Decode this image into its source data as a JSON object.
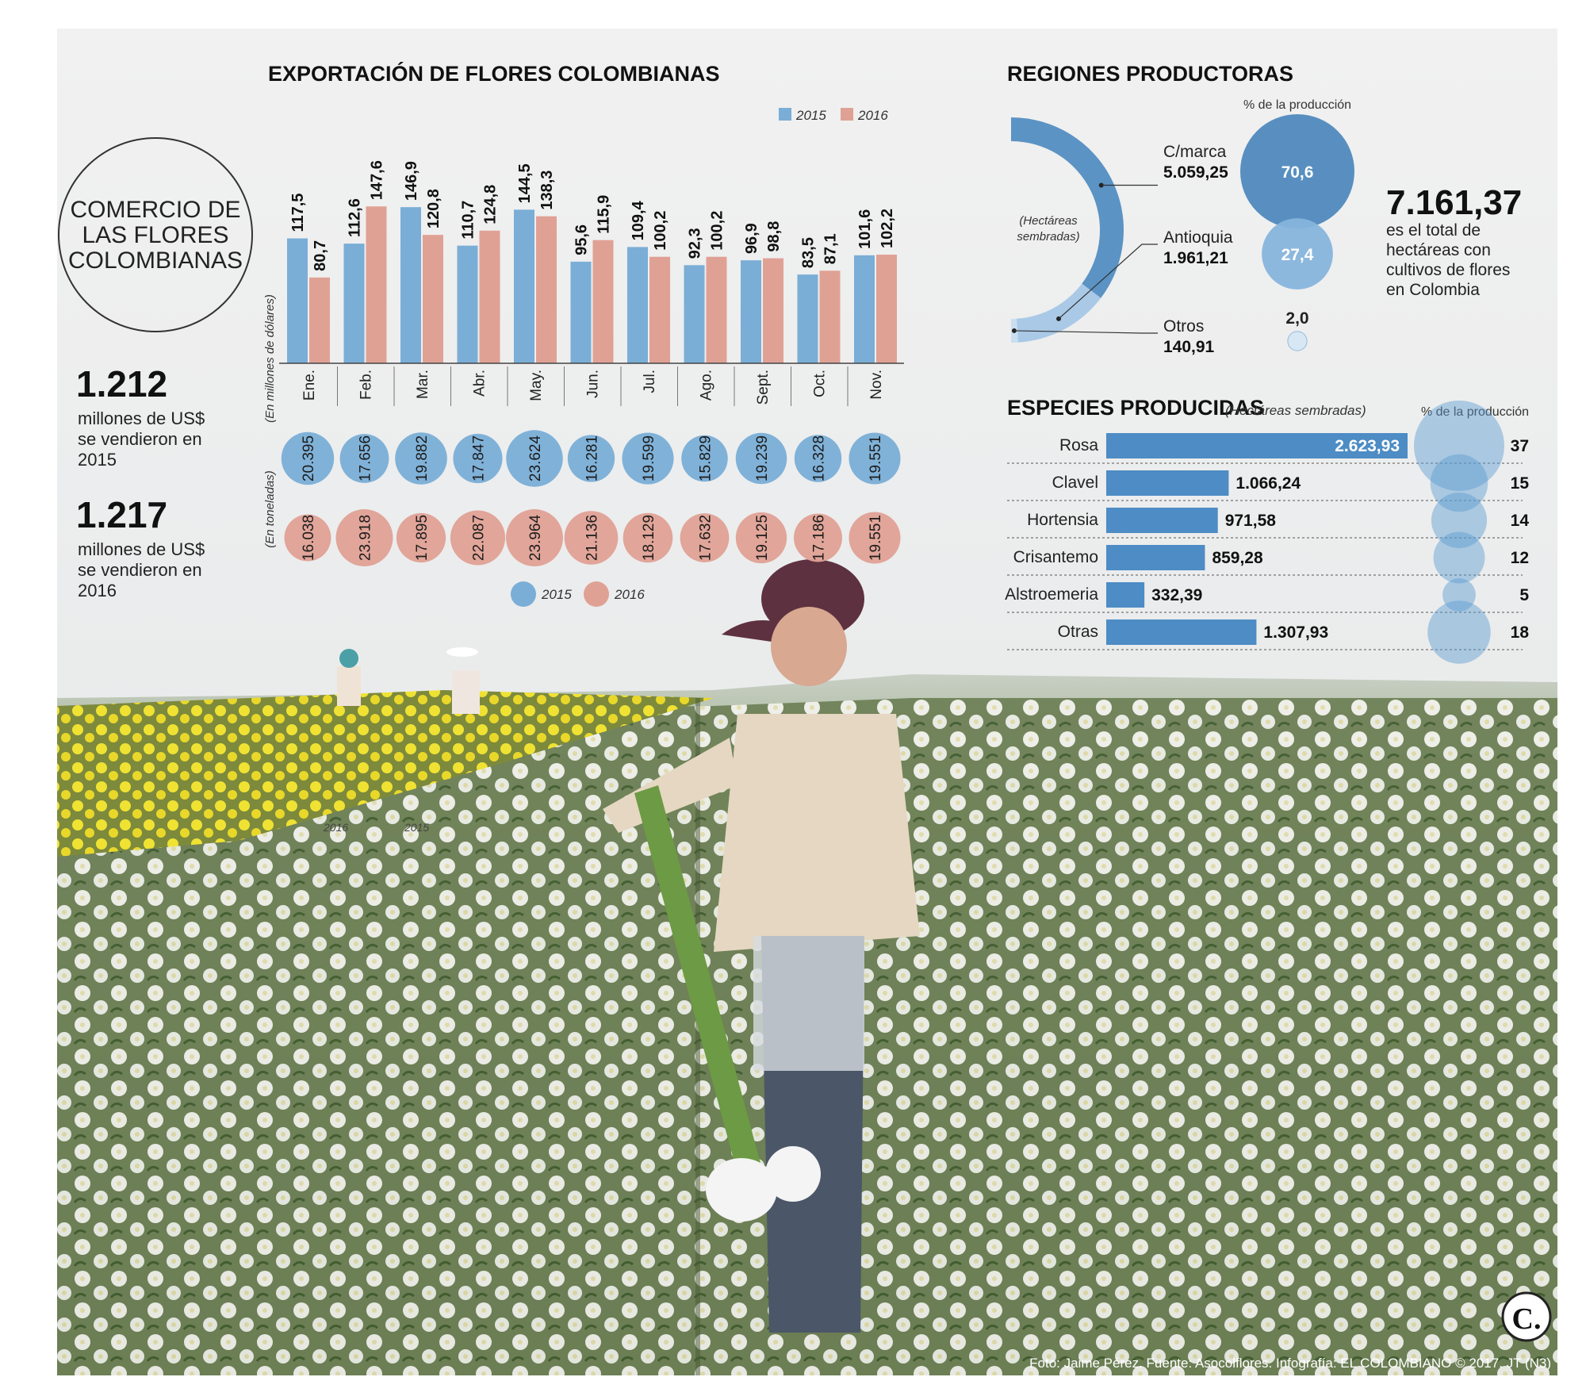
{
  "circle_title": [
    "COMERCIO DE",
    "LAS FLORES",
    "COLOMBIANAS"
  ],
  "totals": [
    {
      "value": "1.212",
      "lines": [
        "millones de US$",
        "se  vendieron en",
        "2015"
      ]
    },
    {
      "value": "1.217",
      "lines": [
        "millones de US$",
        "se  vendieron en",
        "2016"
      ]
    }
  ],
  "colors": {
    "y2015": "#7aaed6",
    "y2016": "#e0a195",
    "region": "#5b93c4",
    "region_light": "#a9c9e6",
    "bar": "#4d8cc4"
  },
  "chart_data": [
    {
      "type": "bar",
      "title": "EXPORTACIÓN DE FLORES COLOMBIANAS",
      "ylabel": "(En millones de dólares)",
      "categories": [
        "Ene.",
        "Feb.",
        "Mar.",
        "Abr.",
        "May.",
        "Jun.",
        "Jul.",
        "Ago.",
        "Sept.",
        "Oct.",
        "Nov."
      ],
      "series": [
        {
          "name": "2015",
          "values": [
            117.5,
            112.6,
            146.9,
            110.7,
            144.5,
            95.6,
            109.4,
            92.3,
            96.9,
            83.5,
            101.6
          ],
          "labels": [
            "117,5",
            "112,6",
            "146,9",
            "110,7",
            "144,5",
            "95,6",
            "109,4",
            "92,3",
            "96,9",
            "83,5",
            "101,6"
          ]
        },
        {
          "name": "2016",
          "values": [
            80.7,
            147.6,
            120.8,
            124.8,
            138.3,
            115.9,
            100.2,
            100.2,
            98.8,
            87.1,
            102.2
          ],
          "labels": [
            "80,7",
            "147,6",
            "120,8",
            "124,8",
            "138,3",
            "115,9",
            "100,2",
            "100,2",
            "98,8",
            "87,1",
            "102,2"
          ]
        }
      ],
      "ylim": [
        0,
        150
      ]
    },
    {
      "type": "bubble",
      "ylabel": "(En toneladas)",
      "categories": [
        "Ene.",
        "Feb.",
        "Mar.",
        "Abr.",
        "May.",
        "Jun.",
        "Jul.",
        "Ago.",
        "Sept.",
        "Oct.",
        "Nov."
      ],
      "series": [
        {
          "name": "2015",
          "values": [
            20395,
            17656,
            19882,
            17847,
            23624,
            16281,
            19599,
            15829,
            19239,
            16328,
            19551
          ],
          "labels": [
            "20.395",
            "17.656",
            "19.882",
            "17.847",
            "23.624",
            "16.281",
            "19.599",
            "15.829",
            "19.239",
            "16.328",
            "19.551"
          ]
        },
        {
          "name": "2016",
          "values": [
            16038,
            23918,
            17895,
            22087,
            23964,
            21136,
            18129,
            17632,
            19125,
            17186,
            19551
          ],
          "labels": [
            "16.038",
            "23.918",
            "17.895",
            "22.087",
            "23.964",
            "21.136",
            "18.129",
            "17.632",
            "19.125",
            "17.186",
            "19.551"
          ]
        }
      ]
    },
    {
      "type": "semicircle",
      "title": "REGIONES PRODUCTORAS",
      "center_label": [
        "(Hectáreas",
        "sembradas)"
      ],
      "pct_title": "% de la producción",
      "regions": [
        {
          "name": "C/marca",
          "hectares": 5059.25,
          "label": "5.059,25",
          "pct": 70.6,
          "pct_label": "70,6"
        },
        {
          "name": "Antioquia",
          "hectares": 1961.21,
          "label": "1.961,21",
          "pct": 27.4,
          "pct_label": "27,4"
        },
        {
          "name": "Otros",
          "hectares": 140.91,
          "label": "140,91",
          "pct": 2.0,
          "pct_label": "2,0"
        }
      ]
    },
    {
      "type": "hbar",
      "title": "ESPECIES PRODUCIDAS",
      "subtitle": "(Hectáreas sembradas)",
      "pct_title": "% de la producción",
      "categories": [
        "Rosa",
        "Clavel",
        "Hortensia",
        "Crisantemo",
        "Alstroemeria",
        "Otras"
      ],
      "values": [
        2623.93,
        1066.24,
        971.58,
        859.28,
        332.39,
        1307.93
      ],
      "labels": [
        "2.623,93",
        "1.066,24",
        "971,58",
        "859,28",
        "332,39",
        "1.307,93"
      ],
      "pct": [
        37,
        15,
        14,
        12,
        5,
        18
      ]
    }
  ],
  "total_hectares": {
    "value": "7.161,37",
    "lines": [
      "es el total de",
      "hectáreas con",
      "cultivos de flores",
      "en Colombia"
    ]
  },
  "photo_marks": [
    "2016",
    "2015"
  ],
  "credit": "Foto: Jaime Pérez. Fuente: Asocolflores. Infografía: EL COLOMBIANO © 2017. JT (N3)",
  "logo": "C."
}
